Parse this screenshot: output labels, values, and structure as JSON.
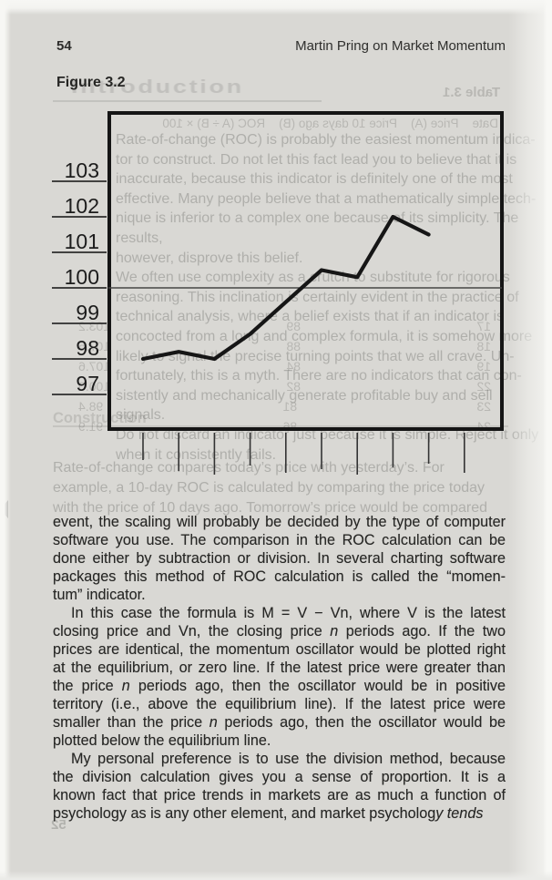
{
  "page": {
    "number": "54",
    "running_title": "Martin Pring on Market Momentum",
    "figure_label": "Figure 3.2"
  },
  "chart_data": {
    "type": "line",
    "title": "Figure 3.2",
    "x": [
      1,
      2,
      3,
      4,
      5,
      6,
      7,
      8,
      9
    ],
    "values": [
      98.0,
      98.2,
      98.0,
      98.7,
      99.6,
      100.5,
      100.3,
      102.0,
      101.5
    ],
    "y_ticks": [
      103,
      102,
      101,
      100,
      99,
      98,
      97
    ],
    "ylim": [
      96.4,
      103.6
    ],
    "equilibrium_line": 100,
    "x_axis_tick_count": 10,
    "grid": "off",
    "legend": "none",
    "line_color": "#161616"
  },
  "body": {
    "p1": {
      "l1": "event, the scaling will probably be decided by the type of computer",
      "l2": "software you use. The comparison in the ROC calculation can be",
      "l3": "done either by subtraction or division. In several charting software",
      "l4": "packages this method of ROC calculation is called the “momen-",
      "l5": "tum” indicator."
    },
    "p2": {
      "l1": "In this case the formula is M = V − Vn, where V is the latest",
      "l2a": "closing price and Vn, the closing price ",
      "l2b": "n",
      "l2c": " periods ago. If the two",
      "l3": "prices are identical, the momentum oscillator would be plotted right",
      "l4": "at the equilibrium, or zero line. If the latest price were greater than",
      "l5a": "the price ",
      "l5b": "n",
      "l5c": " periods ago, then the oscillator would be in positive",
      "l6": "territory (i.e., above the equilibrium line). If the latest price were",
      "l7a": "smaller than the price ",
      "l7b": "n",
      "l7c": " periods ago, then the oscillator would be",
      "l8": "plotted below the equilibrium line."
    },
    "p3": {
      "l1": "My personal preference is to use the division method, because",
      "l2": "the division calculation gives you a sense of proportion. It is a",
      "l3": "known fact that price trends in markets are as much a function of",
      "l4a": "psychology as is any other element, and market psycholog",
      "l4b": "y tends"
    }
  },
  "ghost": {
    "intro_heading": "Introduction",
    "table_caption_mirrored": "Table 3.1",
    "table_header_mirrored": "Date    Price (A)    Price 10 days ago (B)    ROC (A ÷ B) × 100",
    "construction_heading": "Construction",
    "page_number_mirrored": "52",
    "paragraph_lines": [
      "Rate-of-change (ROC) is probably the easiest momentum indica-",
      "tor to construct. Do not let this fact lead you to believe that it is",
      "inaccurate, because this indicator is definitely one of the most",
      "effective. Many people believe that a mathematically simple tech-",
      "nique is inferior to a complex one because of its simplicity. The results,",
      "however, disprove this belief.",
      "We often use complexity as a crutch to substitute for rigorous",
      "reasoning. This inclination is certainly evident in the practice of",
      "technical analysis, where a belief exists that if an indicator is",
      "concocted from a long and complex formula, it is somehow more",
      "likely to signal the precise turning points that we all crave. Un-",
      "fortunately, this is a myth. There are no indicators that can con-",
      "sistently and mechanically generate profitable buy and sell signals.",
      "Do not discard an indicator just because it is simple. Reject it only",
      "when it consistently fails."
    ],
    "below_lines": [
      "Rate-of-change compares today’s price with yesterday’s. For",
      "example, a 10-day ROC is calculated by comparing the price today",
      "with the price of 10 days ago. Tomorrow’s price would be compared"
    ],
    "table_rows": [
      [
        "17",
        "89",
        "103.2"
      ],
      [
        "18",
        "88",
        "107.5"
      ],
      [
        "19",
        "84",
        "107.6"
      ],
      [
        "22",
        "82",
        "100.0"
      ],
      [
        "23",
        "81",
        "98.4"
      ],
      [
        "24",
        "86",
        "91.9"
      ]
    ]
  }
}
